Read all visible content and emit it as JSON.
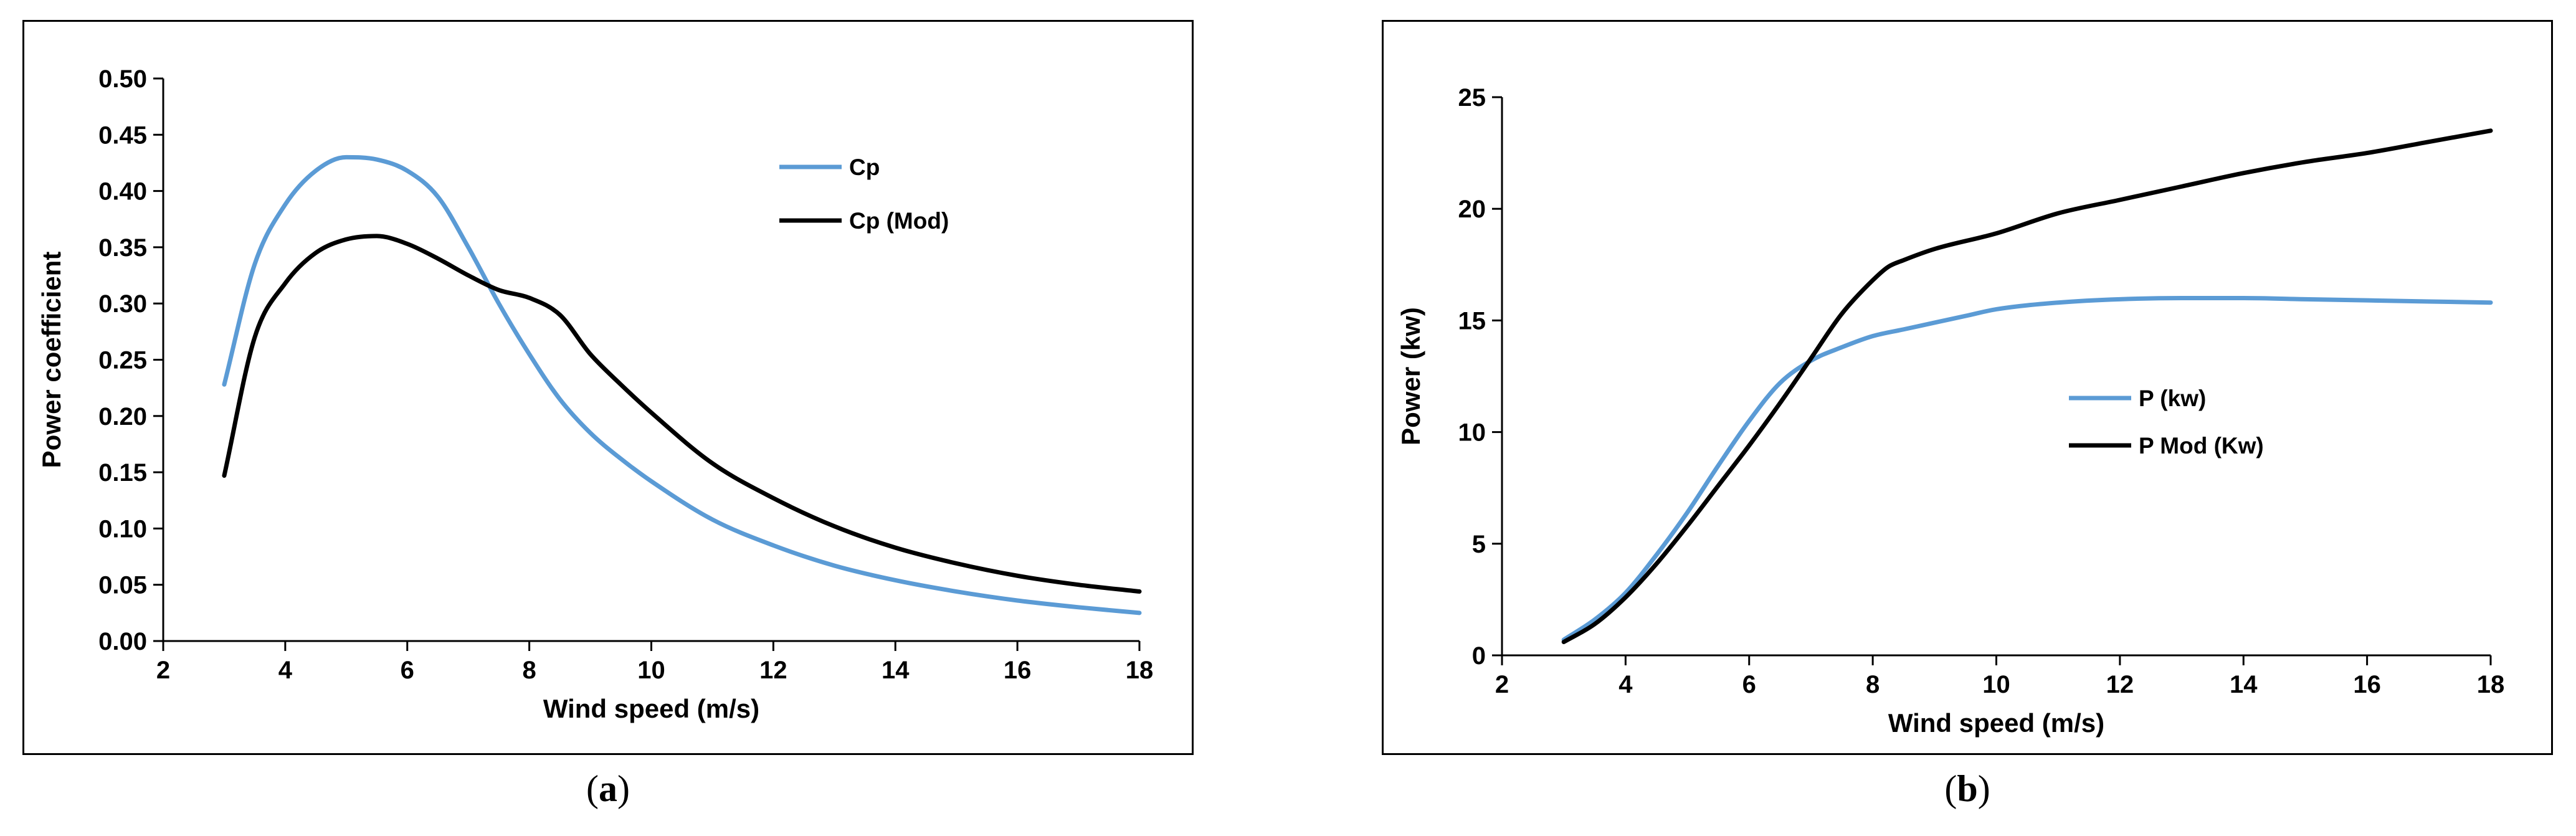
{
  "chart_data": [
    {
      "type": "line",
      "panel_label": "a",
      "xlabel": "Wind speed (m/s)",
      "ylabel": "Power coefficient",
      "xlim": [
        2,
        18
      ],
      "ylim": [
        0,
        0.5
      ],
      "xticks": [
        2,
        4,
        6,
        8,
        10,
        12,
        14,
        16,
        18
      ],
      "yticks": [
        0.0,
        0.05,
        0.1,
        0.15,
        0.2,
        0.25,
        0.3,
        0.35,
        0.4,
        0.45,
        0.5
      ],
      "ytick_decimals": 2,
      "legend_position": "upper-right",
      "grid": false,
      "series": [
        {
          "name": "Cp",
          "color": "#5b9bd5",
          "x": [
            3,
            3.5,
            4,
            4.5,
            5,
            5.5,
            6,
            6.5,
            7,
            7.5,
            8,
            8.5,
            9,
            9.5,
            10,
            11,
            12,
            13,
            14,
            15,
            16,
            17,
            18
          ],
          "y": [
            0.228,
            0.335,
            0.388,
            0.418,
            0.43,
            0.428,
            0.418,
            0.395,
            0.35,
            0.3,
            0.255,
            0.215,
            0.185,
            0.162,
            0.142,
            0.108,
            0.085,
            0.067,
            0.054,
            0.044,
            0.036,
            0.03,
            0.025
          ]
        },
        {
          "name": "Cp (Mod)",
          "color": "#000000",
          "x": [
            3,
            3.5,
            4,
            4.5,
            5,
            5.5,
            6,
            6.5,
            7,
            7.5,
            8,
            8.5,
            9,
            9.5,
            10,
            11,
            12,
            13,
            14,
            15,
            16,
            17,
            18
          ],
          "y": [
            0.147,
            0.27,
            0.318,
            0.345,
            0.357,
            0.36,
            0.353,
            0.34,
            0.325,
            0.312,
            0.305,
            0.29,
            0.255,
            0.228,
            0.203,
            0.158,
            0.127,
            0.102,
            0.083,
            0.069,
            0.058,
            0.05,
            0.044
          ]
        }
      ]
    },
    {
      "type": "line",
      "panel_label": "b",
      "xlabel": "Wind speed (m/s)",
      "ylabel": "Power (kw)",
      "xlim": [
        2,
        18
      ],
      "ylim": [
        0,
        25
      ],
      "xticks": [
        2,
        4,
        6,
        8,
        10,
        12,
        14,
        16,
        18
      ],
      "yticks": [
        0,
        5,
        10,
        15,
        20,
        25
      ],
      "ytick_decimals": 0,
      "legend_position": "center-right",
      "grid": false,
      "series": [
        {
          "name": "P (kw)",
          "color": "#5b9bd5",
          "x": [
            3,
            3.5,
            4,
            4.5,
            5,
            5.5,
            6,
            6.5,
            7,
            7.5,
            8,
            8.5,
            9,
            9.5,
            10,
            11,
            12,
            13,
            14,
            15,
            16,
            17,
            18
          ],
          "y": [
            0.7,
            1.6,
            2.8,
            4.5,
            6.4,
            8.5,
            10.5,
            12.2,
            13.2,
            13.8,
            14.3,
            14.6,
            14.9,
            15.2,
            15.5,
            15.8,
            15.95,
            16.0,
            16.0,
            15.95,
            15.9,
            15.85,
            15.8
          ]
        },
        {
          "name": "P Mod (Kw)",
          "color": "#000000",
          "x": [
            3,
            3.5,
            4,
            4.5,
            5,
            5.5,
            6,
            6.5,
            7,
            7.5,
            8,
            8.25,
            8.5,
            9,
            10,
            11,
            12,
            13,
            14,
            15,
            16,
            17,
            18
          ],
          "y": [
            0.6,
            1.4,
            2.6,
            4.1,
            5.8,
            7.6,
            9.4,
            11.3,
            13.3,
            15.3,
            16.8,
            17.4,
            17.7,
            18.2,
            18.9,
            19.8,
            20.4,
            21.0,
            21.6,
            22.1,
            22.5,
            23.0,
            23.5
          ]
        }
      ]
    }
  ]
}
